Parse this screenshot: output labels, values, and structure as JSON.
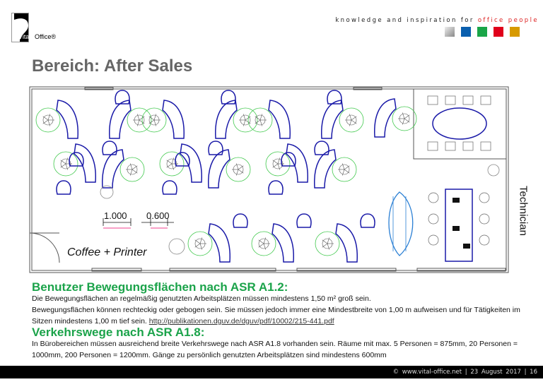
{
  "header": {
    "logo_text": "Vital-Office®",
    "tagline_prefix": "knowledge and inspiration for ",
    "tagline_highlight": "office people",
    "swatch_colors": [
      "#b9babb",
      "#0a5fae",
      "#1aa548",
      "#e0001b",
      "#d79a00"
    ]
  },
  "page_title": "Bereich: After Sales",
  "floorplan": {
    "labels": {
      "technician": "Technician",
      "coffee": "Coffee + Printer"
    },
    "dimensions": [
      "1.000",
      "0.600"
    ],
    "colors": {
      "desk": "#1a1aa8",
      "movement_area": "#3ec84a",
      "meeting": "#2a7fd4",
      "wall": "#555555"
    }
  },
  "section1": {
    "heading": "Benutzer Bewegungsflächen nach ASR A1.2:",
    "line1": "Die Bewegungsflächen an regelmäßig genutzten Arbeitsplätzen müssen mindestens 1,50 m² groß sein.",
    "line2": "Bewegungsflächen können rechteckig oder gebogen sein. Sie müssen jedoch immer eine Mindestbreite von 1,00 m aufweisen und für Tätigkeiten im Sitzen mindestens 1,00 m tief sein.",
    "link": "http://publikationen.dguv.de/dguv/pdf/10002/215-441.pdf"
  },
  "section2": {
    "heading": "Verkehrswege nach ASR A1.8:",
    "text": "In Bürobereichen müssen ausreichend breite Verkehrswege nach ASR A1.8 vorhanden sein. Räume mit max. 5 Personen = 875mm, 20 Personen = 1000mm, 200 Personen = 1200mm. Gänge zu persönlich genutzten Arbeitsplätzen sind mindestens 600mm"
  },
  "footer": {
    "text": "© www.vital-office.net  |  23 August 2017  |  16"
  }
}
